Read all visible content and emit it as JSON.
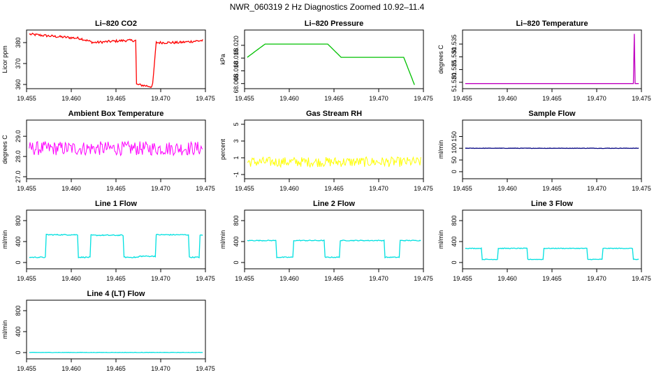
{
  "title": "NWR_060319  2 Hz Diagnostics Zoomed 10.92–11.4",
  "chart_data": [
    {
      "type": "line",
      "title": "Li–820 CO2",
      "ylabel": "Licor ppm",
      "xlim": [
        19.455,
        19.475
      ],
      "ylim": [
        358,
        386
      ],
      "xticks": [
        "19.455",
        "19.460",
        "19.465",
        "19.470",
        "19.475"
      ],
      "yticks": [
        "360",
        "370",
        "380"
      ],
      "color": "#ff0000",
      "series": [
        {
          "x": [
            19.4553,
            19.458,
            19.461,
            19.4625,
            19.466,
            19.4672,
            19.4673,
            19.469,
            19.4691,
            19.4695,
            19.472,
            19.4747
          ],
          "values": [
            384,
            383,
            382,
            380,
            381,
            381,
            360,
            359,
            360,
            380,
            380,
            381
          ]
        }
      ]
    },
    {
      "type": "line",
      "title": "Li–820 Pressure",
      "ylabel": "kPa",
      "xlim": [
        19.455,
        19.475
      ],
      "ylim": [
        68.003,
        68.026
      ],
      "xticks": [
        "19.455",
        "19.460",
        "19.465",
        "19.470",
        "19.475"
      ],
      "yticks": [
        "68.005",
        "68.010",
        "68.015",
        "68.020"
      ],
      "color": "#00c000",
      "series": [
        {
          "x": [
            19.4553,
            19.4573,
            19.4588,
            19.4625,
            19.4643,
            19.4658,
            19.4675,
            19.4728,
            19.474
          ],
          "values": [
            68.0153,
            68.0205,
            68.0205,
            68.0205,
            68.0205,
            68.0153,
            68.0153,
            68.0153,
            68.0045
          ]
        }
      ]
    },
    {
      "type": "line",
      "title": "Li–820 Temperature",
      "ylabel": "degrees C",
      "xlim": [
        19.455,
        19.475
      ],
      "ylim": [
        51.5175,
        51.5405
      ],
      "xticks": [
        "19.455",
        "19.460",
        "19.465",
        "19.470",
        "19.475"
      ],
      "yticks": [
        "51.520",
        "51.525",
        "51.530",
        "51.535"
      ],
      "color": "#c000c0",
      "series": [
        {
          "x": [
            19.4553,
            19.4741,
            19.4742,
            19.4743,
            19.4747
          ],
          "values": [
            51.5195,
            51.5195,
            51.539,
            51.5195,
            51.5195
          ]
        }
      ]
    },
    {
      "type": "line",
      "title": "Ambient Box Temperature",
      "ylabel": "degrees C",
      "xlim": [
        19.455,
        19.475
      ],
      "ylim": [
        26.9,
        29.8
      ],
      "xticks": [
        "19.455",
        "19.460",
        "19.465",
        "19.470",
        "19.475"
      ],
      "yticks": [
        "27.0",
        "28.0",
        "29.0"
      ],
      "color": "#ff00ff",
      "series": [
        {
          "x": [
            19.4553,
            19.4747
          ],
          "values": [
            28.4,
            28.4
          ]
        }
      ]
    },
    {
      "type": "line",
      "title": "Gas Stream RH",
      "ylabel": "percent",
      "xlim": [
        19.455,
        19.475
      ],
      "ylim": [
        -1.5,
        5.5
      ],
      "xticks": [
        "19.455",
        "19.460",
        "19.465",
        "19.470",
        "19.475"
      ],
      "yticks": [
        "-1",
        "1",
        "3",
        "5"
      ],
      "color": "#ffff00",
      "series": [
        {
          "x": [
            19.4553,
            19.4747
          ],
          "values": [
            0.5,
            0.5
          ]
        }
      ]
    },
    {
      "type": "line",
      "title": "Sample Flow",
      "ylabel": "ml/min",
      "xlim": [
        19.455,
        19.475
      ],
      "ylim": [
        -30,
        220
      ],
      "xticks": [
        "19.455",
        "19.460",
        "19.465",
        "19.470",
        "19.475"
      ],
      "yticks": [
        "0",
        "50",
        "100",
        "150"
      ],
      "color": "#000080",
      "series": [
        {
          "x": [
            19.4553,
            19.4747
          ],
          "values": [
            100,
            100
          ]
        }
      ]
    },
    {
      "type": "line",
      "title": "Line 1 Flow",
      "ylabel": "ml/min",
      "xlim": [
        19.455,
        19.475
      ],
      "ylim": [
        -120,
        1000
      ],
      "xticks": [
        "19.455",
        "19.460",
        "19.465",
        "19.470",
        "19.475"
      ],
      "yticks": [
        "0",
        "400",
        "800"
      ],
      "color": "#00e0e0",
      "series": [
        {
          "x": [
            19.4553,
            19.4571,
            19.4572,
            19.4607,
            19.4608,
            19.4621,
            19.4622,
            19.4658,
            19.4659,
            19.4675,
            19.4676,
            19.4694,
            19.4695,
            19.4731,
            19.4732,
            19.4743,
            19.4744,
            19.4747
          ],
          "values": [
            100,
            100,
            530,
            530,
            100,
            100,
            520,
            520,
            100,
            100,
            120,
            120,
            530,
            530,
            100,
            100,
            520,
            520
          ]
        }
      ]
    },
    {
      "type": "line",
      "title": "Line 2 Flow",
      "ylabel": "ml/min",
      "xlim": [
        19.455,
        19.475
      ],
      "ylim": [
        -120,
        1000
      ],
      "xticks": [
        "19.455",
        "19.460",
        "19.465",
        "19.470",
        "19.475"
      ],
      "yticks": [
        "0",
        "400",
        "800"
      ],
      "color": "#00e0e0",
      "series": [
        {
          "x": [
            19.4553,
            19.4585,
            19.4586,
            19.4604,
            19.4605,
            19.4639,
            19.464,
            19.4656,
            19.4657,
            19.4706,
            19.4707,
            19.4723,
            19.4724,
            19.4747
          ],
          "values": [
            420,
            420,
            100,
            100,
            420,
            420,
            100,
            100,
            420,
            420,
            100,
            100,
            420,
            420
          ]
        }
      ]
    },
    {
      "type": "line",
      "title": "Line 3 Flow",
      "ylabel": "ml/min",
      "xlim": [
        19.455,
        19.475
      ],
      "ylim": [
        -120,
        1000
      ],
      "xticks": [
        "19.455",
        "19.460",
        "19.465",
        "19.470",
        "19.475"
      ],
      "yticks": [
        "0",
        "400",
        "800"
      ],
      "color": "#00e0e0",
      "series": [
        {
          "x": [
            19.4553,
            19.4571,
            19.4572,
            19.4589,
            19.459,
            19.4622,
            19.4623,
            19.464,
            19.4641,
            19.4689,
            19.469,
            19.4706,
            19.4707,
            19.474,
            19.4741,
            19.4747
          ],
          "values": [
            270,
            270,
            60,
            60,
            270,
            270,
            60,
            60,
            270,
            270,
            60,
            60,
            270,
            270,
            60,
            60
          ]
        }
      ]
    },
    {
      "type": "line",
      "title": "Line 4 (LT) Flow",
      "ylabel": "ml/min",
      "xlim": [
        19.455,
        19.475
      ],
      "ylim": [
        -120,
        1000
      ],
      "xticks": [
        "19.455",
        "19.460",
        "19.465",
        "19.470",
        "19.475"
      ],
      "yticks": [
        "0",
        "400",
        "800"
      ],
      "color": "#00e0e0",
      "series": [
        {
          "x": [
            19.4553,
            19.4747
          ],
          "values": [
            2,
            2
          ]
        }
      ]
    }
  ]
}
